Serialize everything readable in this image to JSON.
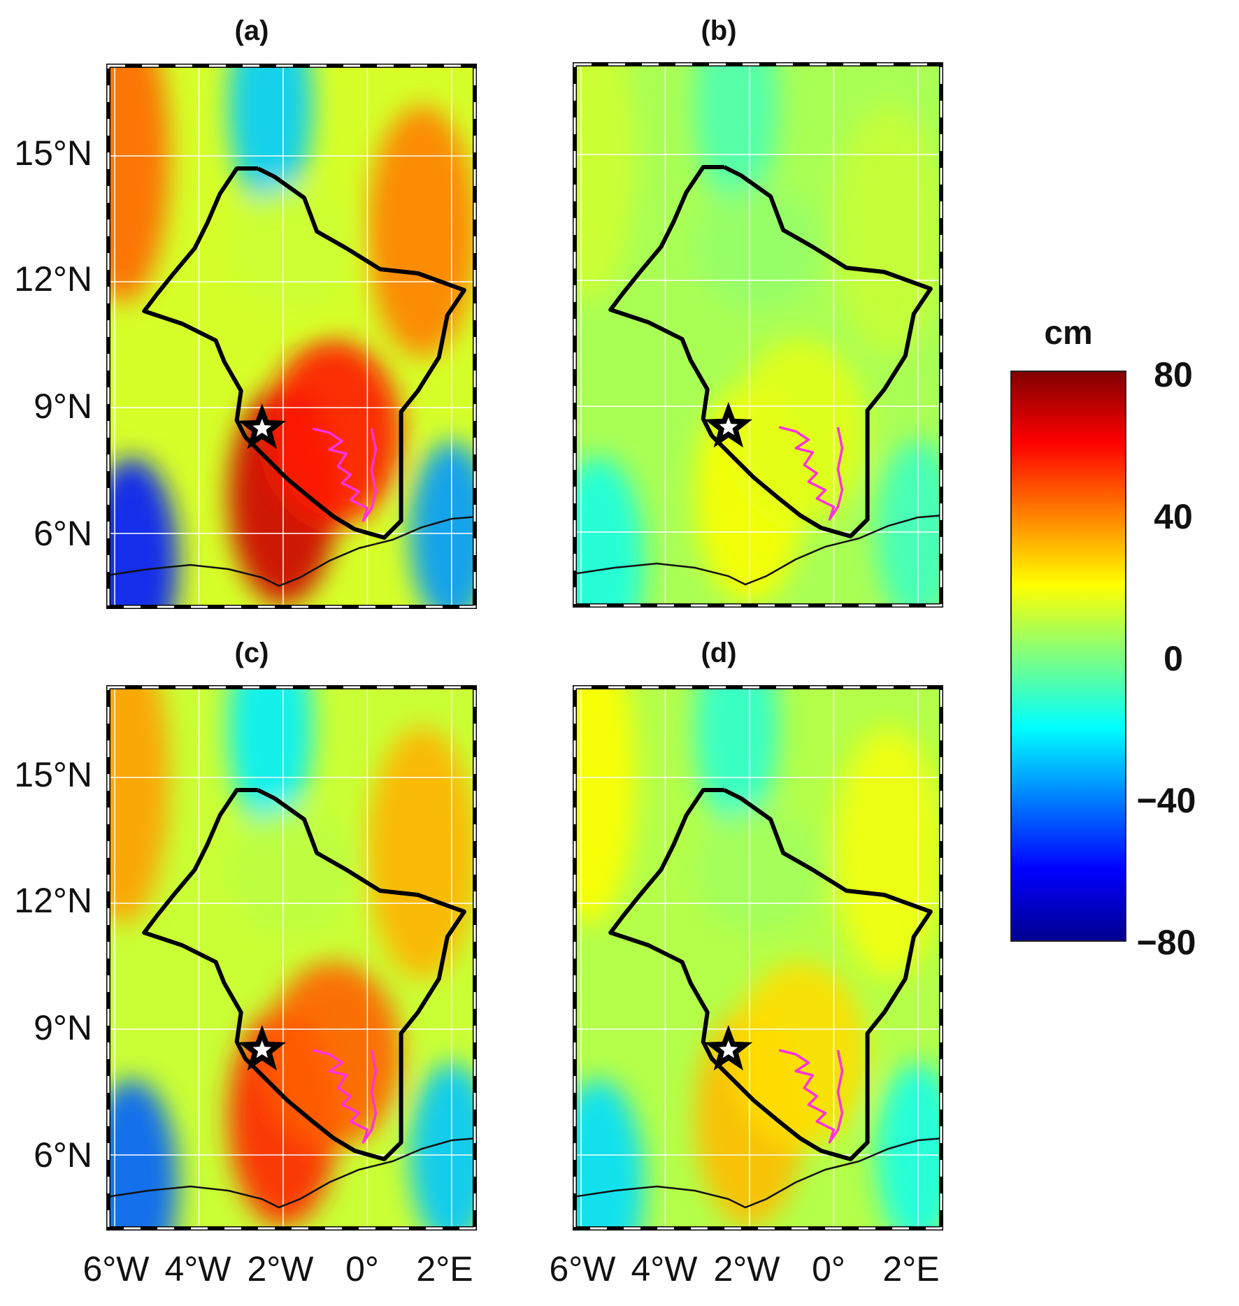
{
  "panels": [
    {
      "id": "a",
      "label": "(a)",
      "amplitude": 1.0
    },
    {
      "id": "b",
      "label": "(b)",
      "amplitude": 0.28
    },
    {
      "id": "c",
      "label": "(c)",
      "amplitude": 0.8
    },
    {
      "id": "d",
      "label": "(d)",
      "amplitude": 0.45
    }
  ],
  "axes": {
    "lat_ticks": [
      "15°N",
      "12°N",
      "9°N",
      "6°N"
    ],
    "lon_ticks": [
      "6°W",
      "4°W",
      "2°W",
      "0°",
      "2°E"
    ],
    "lat_values": [
      15,
      12,
      9,
      6
    ],
    "lon_values": [
      -6,
      -4,
      -2,
      0,
      2
    ],
    "lat_range": [
      4.2,
      17.2
    ],
    "lon_range": [
      -6.2,
      2.6
    ]
  },
  "colorbar": {
    "unit": "cm",
    "ticks": [
      "80",
      "40",
      "0",
      "−40",
      "−80"
    ],
    "range": [
      -80,
      80
    ],
    "colormap": "jet"
  },
  "marker": {
    "type": "star",
    "lat": 8.5,
    "lon": -2.5
  },
  "colors": {
    "basin_outline": "#000000",
    "river": "#ff33dd",
    "coastline": "#111111",
    "grid": "#ffffff"
  }
}
